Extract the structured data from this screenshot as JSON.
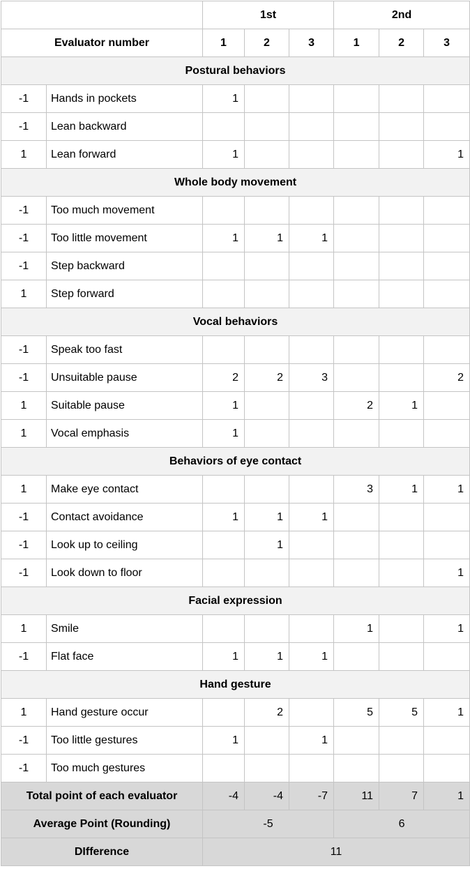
{
  "header": {
    "session_1": "1st",
    "session_2": "2nd",
    "evaluator_label": "Evaluator number",
    "evaluators": [
      "1",
      "2",
      "3",
      "1",
      "2",
      "3"
    ]
  },
  "sections": [
    {
      "title": "Postural behaviors",
      "rows": [
        {
          "weight": "-1",
          "label": "Hands in pockets",
          "scores": [
            "1",
            "",
            "",
            "",
            "",
            ""
          ]
        },
        {
          "weight": "-1",
          "label": "Lean backward",
          "scores": [
            "",
            "",
            "",
            "",
            "",
            ""
          ]
        },
        {
          "weight": "1",
          "label": "Lean forward",
          "scores": [
            "1",
            "",
            "",
            "",
            "",
            "1"
          ]
        }
      ]
    },
    {
      "title": "Whole body movement",
      "rows": [
        {
          "weight": "-1",
          "label": "Too much movement",
          "scores": [
            "",
            "",
            "",
            "",
            "",
            ""
          ]
        },
        {
          "weight": "-1",
          "label": "Too little movement",
          "scores": [
            "1",
            "1",
            "1",
            "",
            "",
            ""
          ]
        },
        {
          "weight": "-1",
          "label": "Step backward",
          "scores": [
            "",
            "",
            "",
            "",
            "",
            ""
          ]
        },
        {
          "weight": "1",
          "label": "Step forward",
          "scores": [
            "",
            "",
            "",
            "",
            "",
            ""
          ]
        }
      ]
    },
    {
      "title": "Vocal behaviors",
      "rows": [
        {
          "weight": "-1",
          "label": "Speak too fast",
          "scores": [
            "",
            "",
            "",
            "",
            "",
            ""
          ]
        },
        {
          "weight": "-1",
          "label": "Unsuitable pause",
          "scores": [
            "2",
            "2",
            "3",
            "",
            "",
            "2"
          ]
        },
        {
          "weight": "1",
          "label": "Suitable pause",
          "scores": [
            "1",
            "",
            "",
            "2",
            "1",
            ""
          ]
        },
        {
          "weight": "1",
          "label": "Vocal emphasis",
          "scores": [
            "1",
            "",
            "",
            "",
            "",
            ""
          ]
        }
      ]
    },
    {
      "title": "Behaviors of eye contact",
      "rows": [
        {
          "weight": "1",
          "label": "Make eye contact",
          "scores": [
            "",
            "",
            "",
            "3",
            "1",
            "1"
          ]
        },
        {
          "weight": "-1",
          "label": "Contact avoidance",
          "scores": [
            "1",
            "1",
            "1",
            "",
            "",
            ""
          ]
        },
        {
          "weight": "-1",
          "label": "Look up to ceiling",
          "scores": [
            "",
            "1",
            "",
            "",
            "",
            ""
          ]
        },
        {
          "weight": "-1",
          "label": "Look down to floor",
          "scores": [
            "",
            "",
            "",
            "",
            "",
            "1"
          ]
        }
      ]
    },
    {
      "title": "Facial expression",
      "rows": [
        {
          "weight": "1",
          "label": "Smile",
          "scores": [
            "",
            "",
            "",
            "1",
            "",
            "1"
          ]
        },
        {
          "weight": "-1",
          "label": "Flat face",
          "scores": [
            "1",
            "1",
            "1",
            "",
            "",
            ""
          ]
        }
      ]
    },
    {
      "title": "Hand gesture",
      "rows": [
        {
          "weight": "1",
          "label": "Hand gesture occur",
          "scores": [
            "",
            "2",
            "",
            "5",
            "5",
            "1"
          ]
        },
        {
          "weight": "-1",
          "label": "Too little gestures",
          "scores": [
            "1",
            "",
            "1",
            "",
            "",
            ""
          ]
        },
        {
          "weight": "-1",
          "label": "Too much gestures",
          "scores": [
            "",
            "",
            "",
            "",
            "",
            ""
          ]
        }
      ]
    }
  ],
  "totals": {
    "label": "Total point of each evaluator",
    "values": [
      "-4",
      "-4",
      "-7",
      "11",
      "7",
      "1"
    ]
  },
  "average": {
    "label": "Average Point (Rounding)",
    "first": "-5",
    "second": "6"
  },
  "difference": {
    "label": "DIfference",
    "value": "11"
  }
}
